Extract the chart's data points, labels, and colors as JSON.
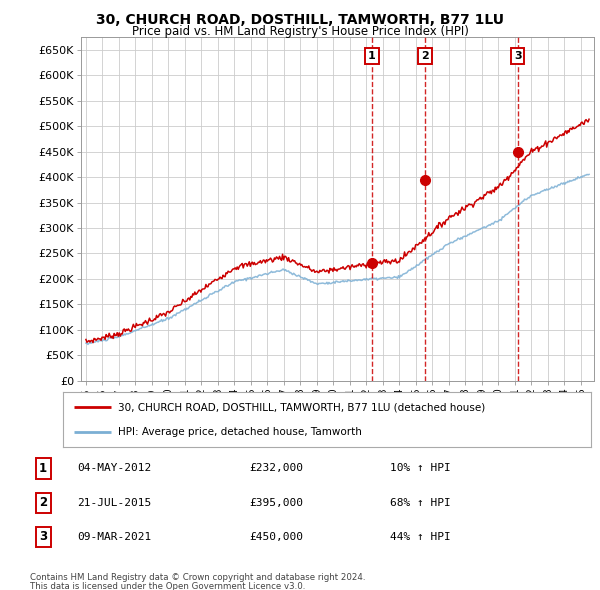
{
  "title": "30, CHURCH ROAD, DOSTHILL, TAMWORTH, B77 1LU",
  "subtitle": "Price paid vs. HM Land Registry's House Price Index (HPI)",
  "ylim": [
    0,
    675000
  ],
  "yticks": [
    0,
    50000,
    100000,
    150000,
    200000,
    250000,
    300000,
    350000,
    400000,
    450000,
    500000,
    550000,
    600000,
    650000
  ],
  "ytick_labels": [
    "£0",
    "£50K",
    "£100K",
    "£150K",
    "£200K",
    "£250K",
    "£300K",
    "£350K",
    "£400K",
    "£450K",
    "£500K",
    "£550K",
    "£600K",
    "£650K"
  ],
  "background_color": "#ffffff",
  "grid_color": "#cccccc",
  "transactions": [
    {
      "date_num": 2012.34,
      "price": 232000,
      "label": "1",
      "date_str": "04-MAY-2012",
      "pct": "10%",
      "direction": "↑"
    },
    {
      "date_num": 2015.55,
      "price": 395000,
      "label": "2",
      "date_str": "21-JUL-2015",
      "pct": "68%",
      "direction": "↑"
    },
    {
      "date_num": 2021.18,
      "price": 450000,
      "label": "3",
      "date_str": "09-MAR-2021",
      "pct": "44%",
      "direction": "↑"
    }
  ],
  "legend_line1": "30, CHURCH ROAD, DOSTHILL, TAMWORTH, B77 1LU (detached house)",
  "legend_line2": "HPI: Average price, detached house, Tamworth",
  "footer1": "Contains HM Land Registry data © Crown copyright and database right 2024.",
  "footer2": "This data is licensed under the Open Government Licence v3.0.",
  "red_color": "#cc0000",
  "blue_color": "#7bafd4",
  "dashed_color": "#cc0000",
  "xlim_left": 1994.7,
  "xlim_right": 2025.8
}
